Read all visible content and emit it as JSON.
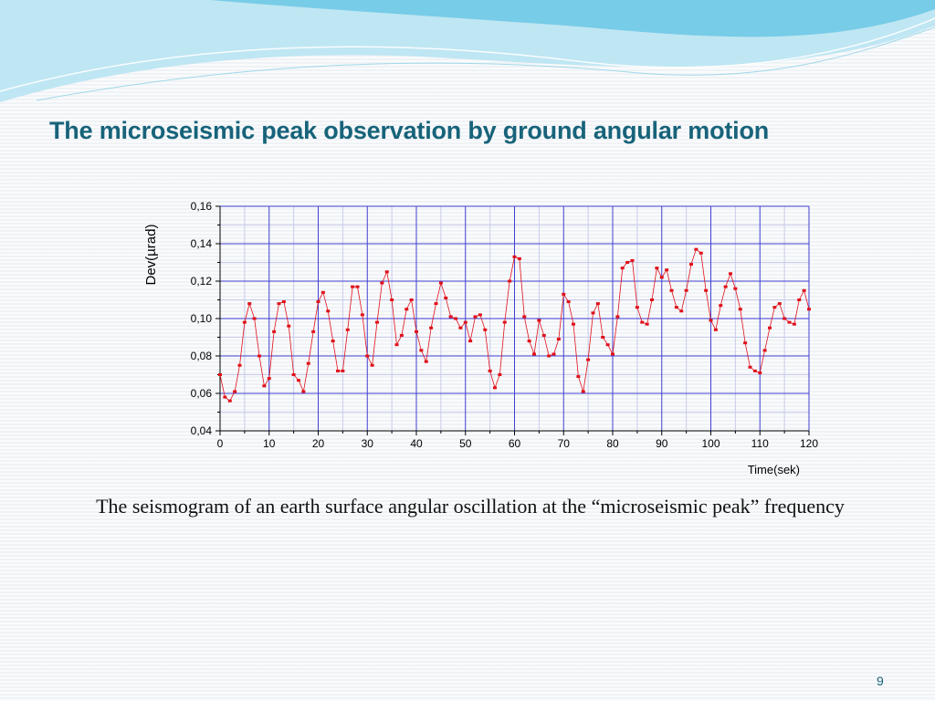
{
  "slide": {
    "title": "The microseismic peak observation by ground angular motion",
    "caption": "The seismogram of an earth surface angular oscillation at the “microseismic peak” frequency",
    "page_number": "9"
  },
  "colors": {
    "title": "#17637a",
    "series": "#e0101a",
    "major_grid": "#4040d0",
    "minor_grid": "#c8cceb",
    "wave_light": "#bfe6f3",
    "wave_dark": "#5fc3e3"
  },
  "chart_data": {
    "type": "line",
    "xlabel": "Time(sek)",
    "ylabel": "Dev(µrad)",
    "xlim": [
      0,
      120
    ],
    "ylim": [
      0.04,
      0.16
    ],
    "x_ticks": [
      "0",
      "10",
      "20",
      "30",
      "40",
      "50",
      "60",
      "70",
      "80",
      "90",
      "100",
      "110",
      "120"
    ],
    "y_ticks": [
      "0,04",
      "0,06",
      "0,08",
      "0,10",
      "0,12",
      "0,14",
      "0,16"
    ],
    "grid": true,
    "series": [
      {
        "x": [
          0,
          1,
          2,
          3,
          4,
          5,
          6,
          7,
          8,
          9,
          10,
          11,
          12,
          13,
          14,
          15,
          16,
          17,
          18,
          19,
          20,
          21,
          22,
          23,
          24,
          25,
          26,
          27,
          28,
          29,
          30,
          31,
          32,
          33,
          34,
          35,
          36,
          37,
          38,
          39,
          40,
          41,
          42,
          43,
          44,
          45,
          46,
          47,
          48,
          49,
          50,
          51,
          52,
          53,
          54,
          55,
          56,
          57,
          58,
          59,
          60,
          61,
          62,
          63,
          64,
          65,
          66,
          67,
          68,
          69,
          70,
          71,
          72,
          73,
          74,
          75,
          76,
          77,
          78,
          79,
          80,
          81,
          82,
          83,
          84,
          85,
          86,
          87,
          88,
          89,
          90,
          91,
          92,
          93,
          94,
          95,
          96,
          97,
          98,
          99,
          100,
          101,
          102,
          103,
          104,
          105,
          106,
          107,
          108,
          109,
          110,
          111,
          112,
          113,
          114,
          115,
          116,
          117,
          118,
          119,
          120
        ],
        "values": [
          0.07,
          0.058,
          0.056,
          0.061,
          0.075,
          0.098,
          0.108,
          0.1,
          0.08,
          0.064,
          0.068,
          0.093,
          0.108,
          0.109,
          0.096,
          0.07,
          0.067,
          0.061,
          0.076,
          0.093,
          0.109,
          0.114,
          0.104,
          0.088,
          0.072,
          0.072,
          0.094,
          0.117,
          0.117,
          0.102,
          0.08,
          0.075,
          0.098,
          0.119,
          0.125,
          0.11,
          0.086,
          0.091,
          0.105,
          0.11,
          0.093,
          0.083,
          0.077,
          0.095,
          0.108,
          0.119,
          0.111,
          0.101,
          0.1,
          0.095,
          0.098,
          0.088,
          0.101,
          0.102,
          0.094,
          0.072,
          0.063,
          0.07,
          0.098,
          0.12,
          0.133,
          0.132,
          0.101,
          0.088,
          0.081,
          0.099,
          0.091,
          0.08,
          0.081,
          0.089,
          0.113,
          0.109,
          0.097,
          0.069,
          0.061,
          0.078,
          0.103,
          0.108,
          0.09,
          0.086,
          0.081,
          0.101,
          0.127,
          0.13,
          0.131,
          0.106,
          0.098,
          0.097,
          0.11,
          0.127,
          0.122,
          0.126,
          0.115,
          0.106,
          0.104,
          0.115,
          0.129,
          0.137,
          0.135,
          0.115,
          0.099,
          0.094,
          0.107,
          0.117,
          0.124,
          0.116,
          0.105,
          0.087,
          0.074,
          0.072,
          0.071,
          0.083,
          0.095,
          0.106,
          0.108,
          0.1,
          0.098,
          0.097,
          0.11,
          0.115,
          0.105
        ]
      }
    ]
  }
}
